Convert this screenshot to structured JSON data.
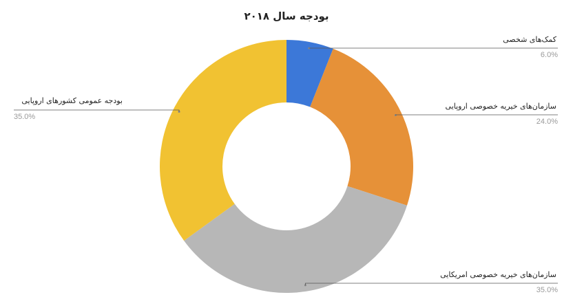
{
  "chart_data": {
    "type": "donut",
    "title": "بودجه سال ۲۰۱۸",
    "categories": [
      "کمک‌های شخصی",
      "سازمان‌های خیریه خصوصی اروپایی",
      "سازمان‌های خیریه خصوصی امریکایی",
      "بودجه عمومی کشورهای اروپایی"
    ],
    "values": [
      6,
      24,
      35,
      35
    ],
    "value_labels": [
      "6.0%",
      "24.0%",
      "35.0%",
      "35.0%"
    ],
    "colors": [
      "#3c78d8",
      "#e69138",
      "#b7b7b7",
      "#f1c232"
    ]
  }
}
